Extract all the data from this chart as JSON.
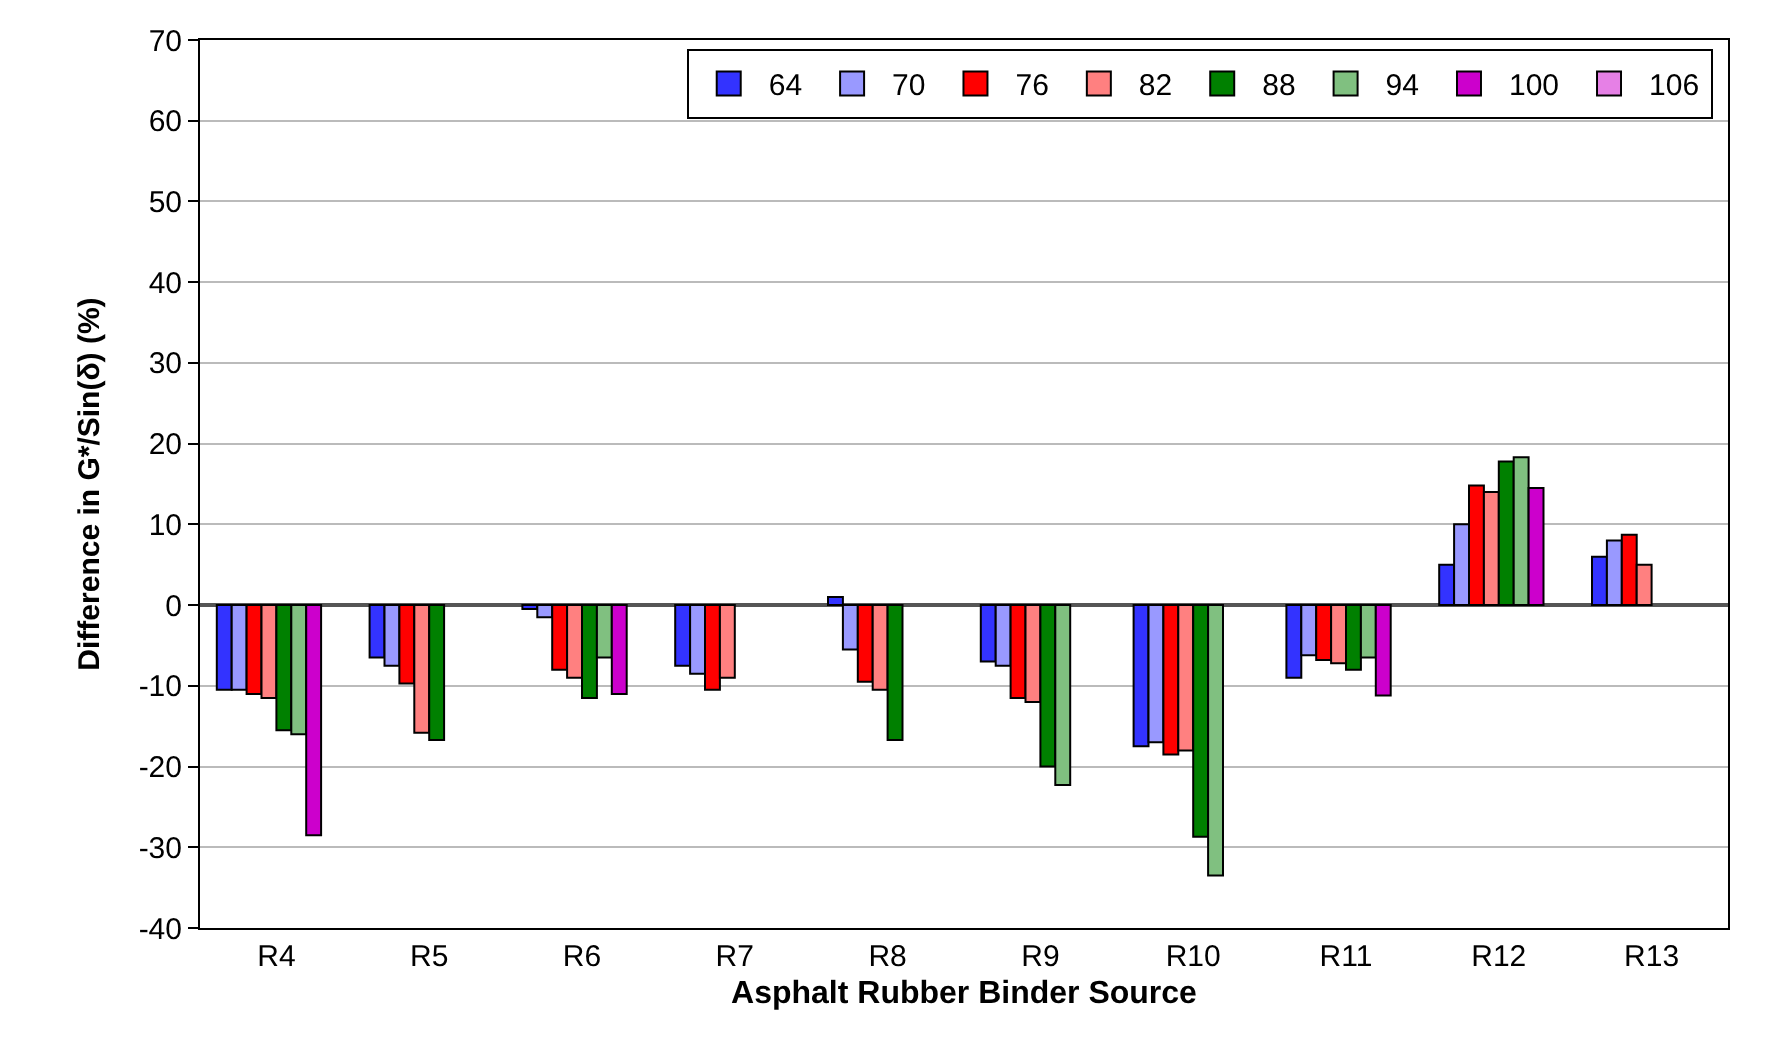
{
  "chart_data": {
    "type": "bar",
    "xlabel": "Asphalt Rubber Binder Source",
    "ylabel": "Difference in G*/Sin(δ) (%)",
    "categories": [
      "R4",
      "R5",
      "R6",
      "R7",
      "R8",
      "R9",
      "R10",
      "R11",
      "R12",
      "R13"
    ],
    "series": [
      {
        "name": "64",
        "color": "#3333ff",
        "values": [
          -10.5,
          -6.5,
          -0.5,
          -7.5,
          1,
          -7,
          -17.5,
          -9,
          5,
          6
        ]
      },
      {
        "name": "70",
        "color": "#9999ff",
        "values": [
          -10.5,
          -7.5,
          -1.5,
          -8.5,
          -5.5,
          -7.5,
          -17,
          -6.2,
          10,
          8
        ]
      },
      {
        "name": "76",
        "color": "#ff0000",
        "values": [
          -11,
          -9.7,
          -8,
          -10.5,
          -9.5,
          -11.5,
          -18.5,
          -6.8,
          14.8,
          8.7
        ]
      },
      {
        "name": "82",
        "color": "#ff8080",
        "values": [
          -11.5,
          -15.8,
          -9,
          -9,
          -10.5,
          -12,
          -18,
          -7.2,
          14,
          5
        ]
      },
      {
        "name": "88",
        "color": "#008000",
        "values": [
          -15.5,
          -16.7,
          -11.5,
          null,
          -16.7,
          -20,
          -28.7,
          -8,
          17.8,
          null
        ]
      },
      {
        "name": "94",
        "color": "#80c080",
        "values": [
          -16,
          null,
          -6.5,
          null,
          null,
          -22.3,
          -33.5,
          -6.5,
          18.3,
          null
        ]
      },
      {
        "name": "100",
        "color": "#cc00cc",
        "values": [
          -28.5,
          null,
          -11,
          null,
          null,
          null,
          null,
          -11.2,
          14.5,
          null
        ]
      },
      {
        "name": "106",
        "color": "#e680e6",
        "values": [
          null,
          null,
          null,
          null,
          null,
          null,
          null,
          null,
          null,
          null
        ]
      }
    ],
    "ylim": [
      -40,
      70
    ],
    "yticks": [
      -40,
      -30,
      -20,
      -10,
      0,
      10,
      20,
      30,
      40,
      50,
      60,
      70
    ],
    "grid": "y",
    "legend": "top right"
  }
}
